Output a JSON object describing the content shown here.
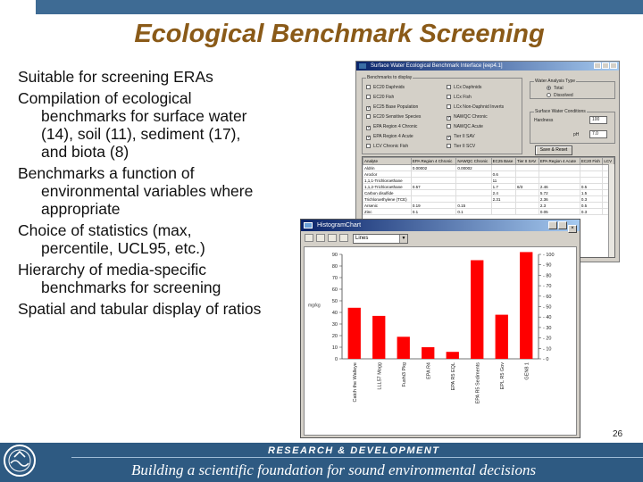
{
  "slide": {
    "title": "Ecological Benchmark Screening",
    "page_number": "26"
  },
  "bullets": [
    {
      "lines": [
        "Suitable for screening ERAs"
      ]
    },
    {
      "lines": [
        "Compilation of ecological",
        "benchmarks for surface water",
        "(14), soil (11), sediment (17),",
        "and biota (8)"
      ]
    },
    {
      "lines": [
        "Benchmarks a function of",
        "environmental variables where",
        "appropriate"
      ]
    },
    {
      "lines": [
        "Choice of statistics (max,",
        "percentile, UCL95, etc.)"
      ]
    },
    {
      "lines": [
        "Hierarchy of media-specific",
        "benchmarks for screening"
      ]
    },
    {
      "lines": [
        "Spatial and tabular display of ratios"
      ]
    }
  ],
  "window1": {
    "title": "Surface Water Ecological Benchmark Interface [eep4.1]",
    "group_benchmarks": "Benchmarks to display",
    "checkboxes": [
      {
        "label": "EC20 Daphnids",
        "checked": false
      },
      {
        "label": "EC20 Fish",
        "checked": false
      },
      {
        "label": "EC25 Base Population",
        "checked": true
      },
      {
        "label": "EC20 Sensitive Species",
        "checked": false
      },
      {
        "label": "EPA Region 4 Chronic",
        "checked": true
      },
      {
        "label": "EPA Region 4 Acute",
        "checked": true
      },
      {
        "label": "LCV Chronic Fish",
        "checked": false
      },
      {
        "label": "LCx Daphnids",
        "checked": false
      },
      {
        "label": "LCx Fish",
        "checked": false
      },
      {
        "label": "LCx Non-Daphnid Inverts",
        "checked": false
      },
      {
        "label": "NAWQC Chronic",
        "checked": true
      },
      {
        "label": "NAWQC Acute",
        "checked": false
      },
      {
        "label": "Tier II SAV",
        "checked": true
      },
      {
        "label": "Tier II SCV",
        "checked": false
      }
    ],
    "group_analysis": "Water Analysis Type",
    "radios": [
      {
        "label": "Total",
        "checked": true
      },
      {
        "label": "Dissolved",
        "checked": false
      }
    ],
    "group_conditions": "Surface Water Conditions",
    "hardness_label": "Hardness",
    "hardness_value": "100",
    "ph_label": "pH",
    "ph_value": "7.0",
    "button_label": "Save & Reset",
    "table": {
      "headers": [
        "Analyte",
        "EPA Region 4 Chronic",
        "NAWQC Chronic",
        "EC25 Base",
        "Tier II SAV",
        "EPA Region 4 Acute",
        "EC20 Fish",
        "LCV"
      ],
      "rows": [
        [
          "Aldrin",
          "0.00002",
          "0.00002",
          "",
          "",
          "",
          "",
          ""
        ],
        [
          "Aroclor",
          "",
          "",
          "0.6",
          "",
          "",
          "",
          ""
        ],
        [
          "1,1,1-Trichloroethane",
          "",
          "",
          "11",
          "",
          "",
          "",
          ""
        ],
        [
          "1,1,2-Trichloroethane",
          "0.57",
          "",
          "1.7",
          "6/3",
          "2.46",
          "0.5",
          ""
        ],
        [
          "Carbon disulfide",
          "",
          "",
          "2.4",
          "",
          "5.72",
          "1.5",
          ""
        ],
        [
          "Trichloroethylene (TCE)",
          "",
          "",
          "2.31",
          "",
          "2.36",
          "0.3",
          ""
        ],
        [
          "Arsenic",
          "0.19",
          "0.15",
          "",
          "",
          "2.3",
          "0.5",
          ""
        ],
        [
          "Zinc",
          "0.1",
          "0.1",
          "",
          "",
          "0.05",
          "0.3",
          ""
        ]
      ]
    }
  },
  "window2": {
    "title": "HistogramChart",
    "select_value": "Lines",
    "y_unit_label": "mg/kg"
  },
  "chart_data": {
    "type": "bar",
    "categories": [
      "Catch the Walleye",
      "LLL57 Mogg",
      "Fushi3 Pkg",
      "EPA R4",
      "EPA R5 EQL",
      "EPA R5 Sediments",
      "EPL R5 Gov",
      "GEN8 1"
    ],
    "values": [
      44,
      37,
      19,
      10,
      6,
      85,
      38,
      92
    ],
    "bar_color": "#ff0000",
    "left_axis": {
      "ticks": [
        0,
        10,
        20,
        30,
        40,
        50,
        60,
        70,
        80,
        90
      ],
      "ylim": [
        0,
        90
      ]
    },
    "right_axis": {
      "ticks": [
        0,
        10,
        20,
        30,
        40,
        50,
        60,
        70,
        80,
        90,
        100
      ],
      "ylim": [
        0,
        100
      ]
    }
  },
  "footer": {
    "rd_text": "RESEARCH & DEVELOPMENT",
    "tagline": "Building a scientific foundation for sound environmental decisions",
    "bar_color": "#2e5a82"
  }
}
